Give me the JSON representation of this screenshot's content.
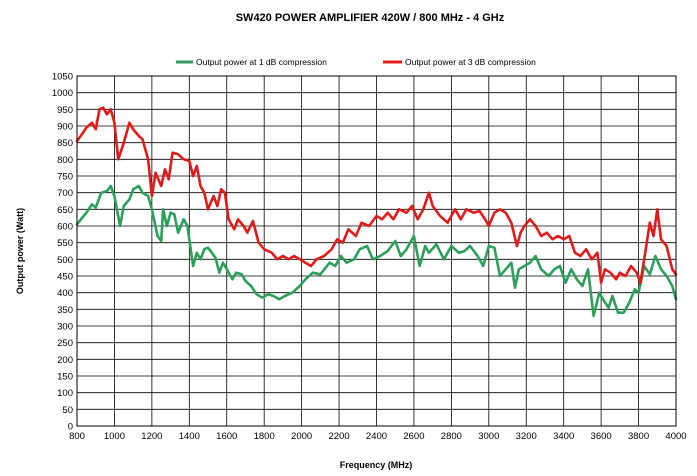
{
  "chart_data": {
    "type": "line",
    "title": "SW420 POWER AMPLIFIER 420W / 800 MHz - 4 GHz",
    "xlabel": "Frequency  (MHz)",
    "ylabel": "Output power (Watt)",
    "xlim": [
      800,
      4000
    ],
    "ylim": [
      0,
      1050
    ],
    "xticks": [
      "800",
      "1000",
      "1200",
      "1400",
      "1600",
      "1800",
      "2000",
      "2200",
      "2400",
      "2600",
      "2800",
      "3000",
      "3200",
      "3400",
      "3600",
      "3800",
      "4000"
    ],
    "yticks": [
      "0",
      "50",
      "100",
      "150",
      "200",
      "250",
      "300",
      "350",
      "400",
      "450",
      "500",
      "550",
      "600",
      "650",
      "700",
      "750",
      "800",
      "850",
      "900",
      "950",
      "1000",
      "1050"
    ],
    "grid": true,
    "legend": "top-center",
    "series": [
      {
        "name": "Output power at 1 dB compression",
        "color": "#2e9e5b",
        "x": [
          800,
          850,
          880,
          900,
          930,
          960,
          980,
          1000,
          1030,
          1050,
          1080,
          1100,
          1130,
          1150,
          1180,
          1200,
          1230,
          1250,
          1260,
          1280,
          1300,
          1320,
          1340,
          1370,
          1390,
          1420,
          1440,
          1460,
          1480,
          1500,
          1520,
          1540,
          1560,
          1580,
          1600,
          1630,
          1650,
          1680,
          1700,
          1730,
          1760,
          1790,
          1820,
          1850,
          1880,
          1910,
          1950,
          1990,
          2020,
          2060,
          2100,
          2150,
          2180,
          2210,
          2240,
          2280,
          2310,
          2350,
          2380,
          2420,
          2460,
          2500,
          2530,
          2560,
          2600,
          2630,
          2660,
          2680,
          2720,
          2760,
          2800,
          2840,
          2870,
          2900,
          2940,
          2970,
          3000,
          3030,
          3060,
          3090,
          3120,
          3140,
          3160,
          3190,
          3220,
          3250,
          3280,
          3320,
          3350,
          3380,
          3410,
          3440,
          3470,
          3500,
          3530,
          3560,
          3590,
          3610,
          3640,
          3660,
          3690,
          3720,
          3750,
          3780,
          3800,
          3830,
          3860,
          3890,
          3920,
          3950,
          3980,
          4000
        ],
        "y": [
          605,
          640,
          665,
          655,
          700,
          705,
          720,
          690,
          600,
          660,
          680,
          710,
          720,
          700,
          690,
          650,
          570,
          555,
          650,
          600,
          640,
          635,
          580,
          620,
          600,
          480,
          520,
          500,
          530,
          535,
          520,
          505,
          460,
          490,
          470,
          440,
          460,
          455,
          435,
          420,
          395,
          385,
          395,
          390,
          380,
          390,
          400,
          420,
          440,
          460,
          455,
          490,
          480,
          510,
          490,
          500,
          530,
          540,
          500,
          510,
          525,
          555,
          510,
          530,
          570,
          480,
          540,
          520,
          545,
          500,
          540,
          520,
          525,
          540,
          510,
          480,
          540,
          535,
          450,
          470,
          490,
          415,
          470,
          480,
          490,
          510,
          470,
          450,
          470,
          480,
          430,
          470,
          440,
          420,
          470,
          330,
          400,
          380,
          355,
          390,
          340,
          340,
          370,
          410,
          400,
          480,
          455,
          510,
          470,
          450,
          420,
          380
        ]
      },
      {
        "name": "Output power at 3 dB compression",
        "color": "#e01b1b",
        "x": [
          800,
          820,
          850,
          880,
          900,
          920,
          940,
          960,
          980,
          1000,
          1020,
          1050,
          1080,
          1100,
          1130,
          1150,
          1180,
          1200,
          1220,
          1250,
          1270,
          1290,
          1310,
          1340,
          1370,
          1400,
          1420,
          1440,
          1460,
          1480,
          1500,
          1530,
          1550,
          1570,
          1590,
          1610,
          1640,
          1660,
          1690,
          1710,
          1740,
          1770,
          1800,
          1840,
          1870,
          1900,
          1930,
          1960,
          1990,
          2020,
          2050,
          2080,
          2120,
          2160,
          2190,
          2220,
          2250,
          2290,
          2320,
          2360,
          2400,
          2430,
          2460,
          2490,
          2520,
          2560,
          2590,
          2620,
          2650,
          2680,
          2700,
          2740,
          2780,
          2820,
          2850,
          2880,
          2920,
          2950,
          2980,
          3000,
          3030,
          3060,
          3090,
          3120,
          3150,
          3170,
          3190,
          3220,
          3250,
          3280,
          3310,
          3340,
          3370,
          3400,
          3430,
          3460,
          3490,
          3520,
          3550,
          3580,
          3600,
          3620,
          3650,
          3680,
          3700,
          3730,
          3760,
          3790,
          3810,
          3830,
          3860,
          3880,
          3900,
          3920,
          3950,
          3980,
          4000
        ],
        "y": [
          855,
          870,
          895,
          910,
          890,
          950,
          955,
          935,
          950,
          910,
          800,
          850,
          910,
          890,
          870,
          860,
          800,
          690,
          760,
          720,
          770,
          740,
          820,
          815,
          800,
          795,
          750,
          780,
          720,
          700,
          650,
          690,
          660,
          710,
          700,
          620,
          590,
          620,
          600,
          580,
          615,
          550,
          530,
          520,
          500,
          510,
          500,
          510,
          500,
          490,
          480,
          500,
          510,
          530,
          560,
          550,
          590,
          570,
          610,
          600,
          630,
          620,
          640,
          620,
          650,
          640,
          660,
          620,
          650,
          700,
          660,
          630,
          610,
          650,
          620,
          650,
          640,
          645,
          620,
          600,
          640,
          650,
          640,
          610,
          540,
          580,
          600,
          620,
          600,
          570,
          580,
          560,
          570,
          560,
          570,
          520,
          510,
          530,
          500,
          520,
          430,
          470,
          460,
          440,
          460,
          450,
          480,
          460,
          430,
          500,
          610,
          570,
          650,
          560,
          540,
          470,
          455
        ]
      }
    ]
  }
}
